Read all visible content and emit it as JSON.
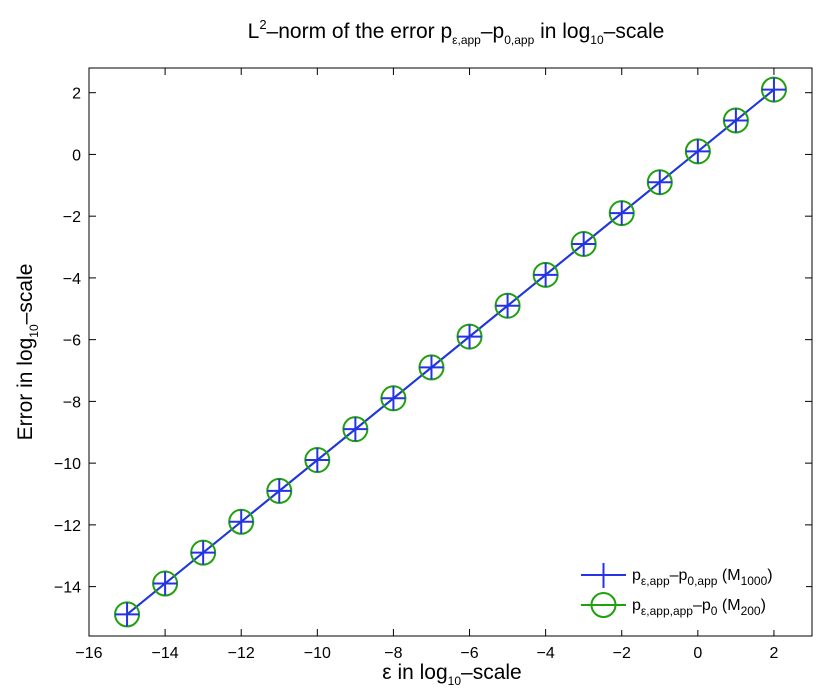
{
  "chart_data": {
    "type": "line",
    "title": {
      "pre": "L",
      "sup": "2",
      "mid": "–norm of the error p",
      "sub1": "ε,app",
      "dash": "–p",
      "sub2": "0,app",
      "post1": " in log",
      "sub3": "10",
      "post2": "–scale"
    },
    "xlabel": {
      "pre": "ε in log",
      "sub": "10",
      "post": "–scale"
    },
    "ylabel": {
      "pre": "Error in log",
      "sub": "10",
      "post": "–scale"
    },
    "xlim": [
      -16,
      3
    ],
    "ylim": [
      -15.6,
      2.8
    ],
    "x_ticks": [
      -16,
      -14,
      -12,
      -10,
      -8,
      -6,
      -4,
      -2,
      0,
      2
    ],
    "y_ticks": [
      -14,
      -12,
      -10,
      -8,
      -6,
      -4,
      -2,
      0,
      2
    ],
    "x_tick_labels": [
      "−16",
      "−14",
      "−12",
      "−10",
      "−8",
      "−6",
      "−4",
      "−2",
      "0",
      "2"
    ],
    "y_tick_labels": [
      "−14",
      "−12",
      "−10",
      "−8",
      "−6",
      "−4",
      "−2",
      "0",
      "2"
    ],
    "grid": false,
    "legend_position": "bottom-right",
    "x": [
      -15,
      -14,
      -13,
      -12,
      -11,
      -10,
      -9,
      -8,
      -7,
      -6,
      -5,
      -4,
      -3,
      -2,
      -1,
      0,
      1,
      2
    ],
    "series": [
      {
        "name": {
          "p": "p",
          "s1": "ε,app",
          "d": "–p",
          "s2": "0,app",
          "m": " (M",
          "ms": "1000",
          "e": ")"
        },
        "marker": "plus",
        "color": "#2433e6",
        "values": [
          -14.9,
          -13.9,
          -12.9,
          -11.9,
          -10.9,
          -9.9,
          -8.9,
          -7.9,
          -6.9,
          -5.9,
          -4.9,
          -3.9,
          -2.9,
          -1.9,
          -0.9,
          0.1,
          1.1,
          2.1
        ]
      },
      {
        "name": {
          "p": "p",
          "s1": "ε,app,app",
          "d": "–p",
          "s2": "0",
          "m": " (M",
          "ms": "200",
          "e": ")"
        },
        "marker": "circle",
        "color": "#21a00f",
        "values": [
          -14.9,
          -13.9,
          -12.9,
          -11.9,
          -10.9,
          -9.9,
          -8.9,
          -7.9,
          -6.9,
          -5.9,
          -4.9,
          -3.9,
          -2.9,
          -1.9,
          -0.9,
          0.1,
          1.1,
          2.1
        ]
      }
    ]
  }
}
